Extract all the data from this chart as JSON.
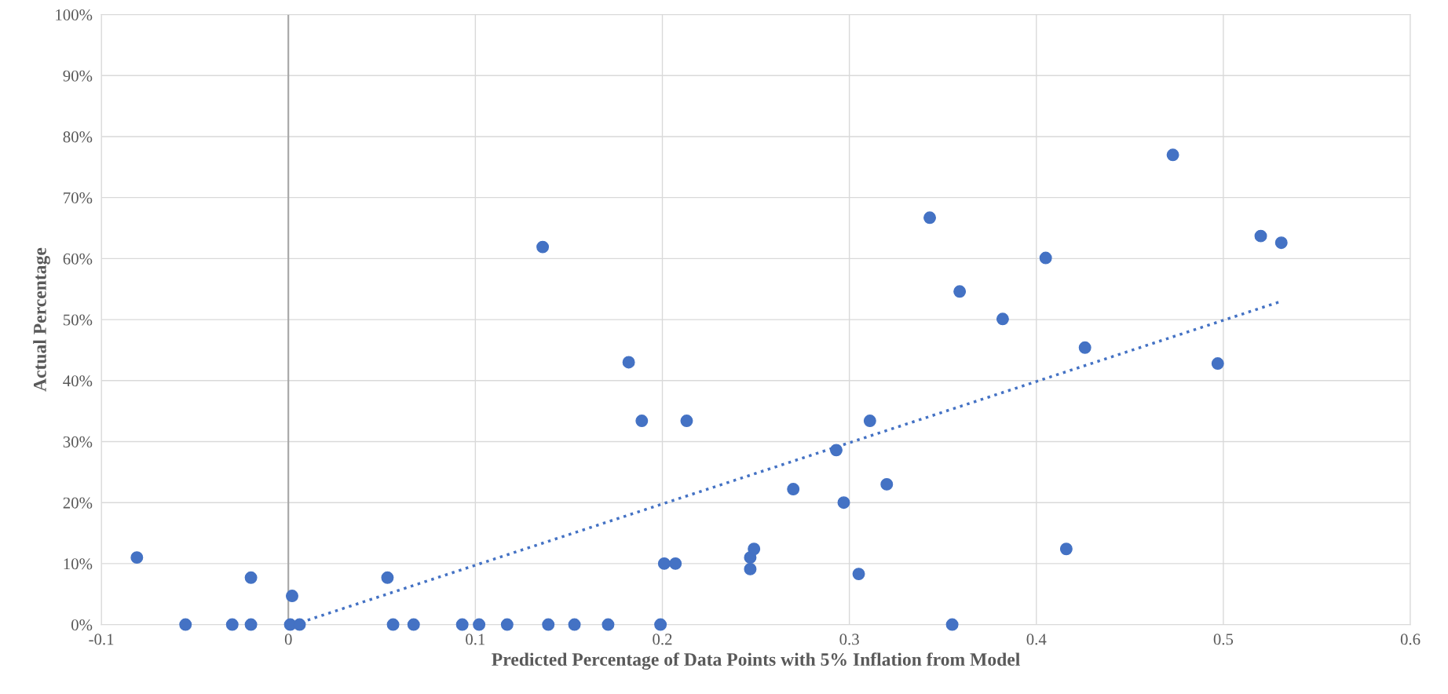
{
  "chart_data": {
    "type": "scatter",
    "xlabel": "Predicted Percentage of Data Points with 5% Inflation from Model",
    "ylabel": "Actual Percentage",
    "xlim": [
      -0.1,
      0.6
    ],
    "xticks": [
      -0.1,
      0,
      0.1,
      0.2,
      0.3,
      0.4,
      0.5,
      0.6
    ],
    "ylim": [
      0,
      100
    ],
    "yticks": [
      {
        "value": 0,
        "label": "0%"
      },
      {
        "value": 10,
        "label": "10%"
      },
      {
        "value": 20,
        "label": "20%"
      },
      {
        "value": 30,
        "label": "30%"
      },
      {
        "value": 40,
        "label": "40%"
      },
      {
        "value": 50,
        "label": "50%"
      },
      {
        "value": 60,
        "label": "60%"
      },
      {
        "value": 70,
        "label": "70%"
      },
      {
        "value": 80,
        "label": "80%"
      },
      {
        "value": 90,
        "label": "90%"
      },
      {
        "value": 100,
        "label": "100%"
      }
    ],
    "grid": true,
    "marker": "circle",
    "ref_lines": [
      {
        "axis": "x",
        "value": 0,
        "color": "#a6a6a6"
      }
    ],
    "series": [
      {
        "color": "#4472c4",
        "x": [
          -0.081,
          -0.055,
          -0.03,
          -0.02,
          -0.02,
          0.002,
          0.001,
          0.006,
          0.053,
          0.056,
          0.067,
          0.093,
          0.102,
          0.117,
          0.136,
          0.139,
          0.153,
          0.171,
          0.182,
          0.189,
          0.199,
          0.201,
          0.207,
          0.213,
          0.247,
          0.247,
          0.249,
          0.27,
          0.293,
          0.297,
          0.305,
          0.311,
          0.32,
          0.343,
          0.355,
          0.359,
          0.382,
          0.405,
          0.416,
          0.426,
          0.473,
          0.497,
          0.52,
          0.531
        ],
        "values": [
          11.0,
          0,
          0,
          0,
          7.7,
          4.7,
          0,
          0,
          7.7,
          0,
          0,
          0,
          0,
          0,
          61.9,
          0,
          0,
          0,
          43.0,
          33.4,
          0,
          10.0,
          10.0,
          33.4,
          11.0,
          9.1,
          12.4,
          22.2,
          28.6,
          20.0,
          8.3,
          33.4,
          23.0,
          66.7,
          0,
          54.6,
          50.1,
          60.1,
          12.4,
          45.4,
          77.0,
          42.8,
          63.7,
          62.6
        ]
      },
      {
        "type": "line",
        "color": "#4472c4",
        "line_style": "dotted",
        "marker": "none",
        "x": [
          0.003,
          0.53
        ],
        "values": [
          0,
          52.9
        ]
      }
    ]
  }
}
